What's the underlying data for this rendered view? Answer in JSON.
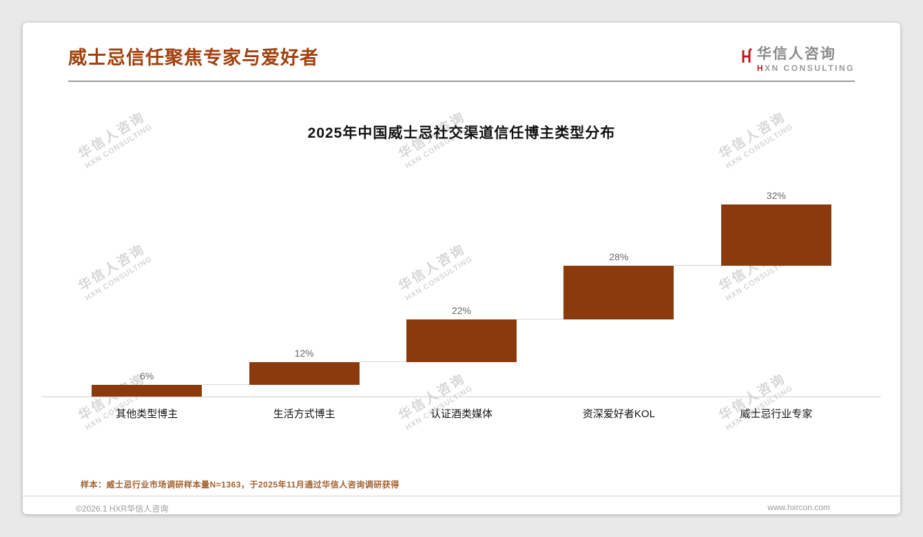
{
  "page": {
    "heading": "威士忌信任聚焦专家与爱好者",
    "logo": {
      "name": "华信人咨询",
      "sub": "HXN CONSULTING"
    },
    "watermark": {
      "line1": "华信人咨询",
      "line2": "HXN CONSULTING"
    },
    "note": "样本：威士忌行业市场调研样本量N=1363，于2025年11月通过华信人咨询调研获得",
    "footer": {
      "left": "©2026.1 HXR华信人咨询",
      "right": "www.hxrcon.com"
    }
  },
  "chart_data": {
    "type": "bar",
    "subtype": "waterfall-steps",
    "title": "2025年中国威士忌社交渠道信任博主类型分布",
    "xlabel": "",
    "ylabel": "",
    "categories": [
      "其他类型博主",
      "生活方式博主",
      "认证酒类媒体",
      "资深爱好者KOL",
      "威士忌行业专家"
    ],
    "values": [
      6,
      12,
      22,
      28,
      32
    ],
    "labels": [
      "6%",
      "12%",
      "22%",
      "28%",
      "32%"
    ],
    "cumulative": [
      6,
      18,
      40,
      68,
      100
    ],
    "ylim": [
      0,
      100
    ],
    "grid": false,
    "legend": false,
    "bar_color": "#8b3a0e",
    "value_label_color": "#666666",
    "baseline_color": "#cccccc"
  },
  "colors": {
    "accent_title": "#a0400e",
    "bar": "#8b3a0e",
    "logo_red": "#c3161c",
    "watermark": "#d6d6d6",
    "note_text": "#a2602c",
    "page_background": "#e9e9e9",
    "card_background": "#ffffff"
  }
}
